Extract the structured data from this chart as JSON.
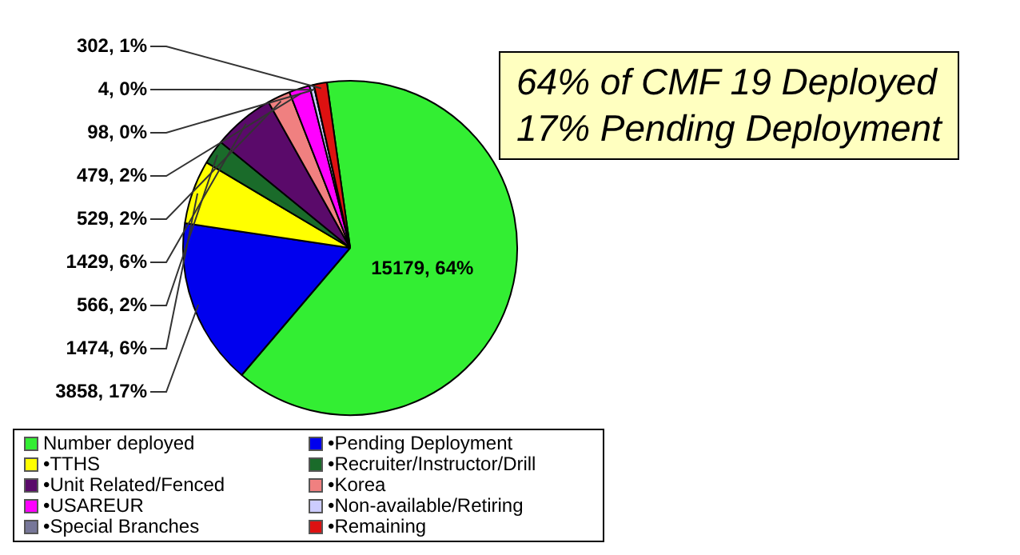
{
  "chart_data": {
    "type": "pie",
    "categories": [
      "Number deployed",
      "•Pending Deployment",
      "•TTHS",
      "•Recruiter/Instructor/Drill",
      "•Unit Related/Fenced",
      "•Korea",
      "•USAREUR",
      "•Non-available/Retiring",
      "•Special Branches",
      "•Remaining"
    ],
    "values": [
      15179,
      3858,
      1474,
      566,
      1429,
      529,
      479,
      98,
      4,
      302
    ],
    "value_labels": [
      "15179, 64%",
      "3858, 17%",
      "1474, 6%",
      "566, 2%",
      "1429, 6%",
      "529, 2%",
      "479, 2%",
      "98, 0%",
      "4, 0%",
      "302, 1%"
    ],
    "colors": [
      "#33ee33",
      "#0000ee",
      "#ffff00",
      "#1a6b2a",
      "#5a0a6a",
      "#f08080",
      "#ff00ff",
      "#ccccff",
      "#777799",
      "#dd1111"
    ],
    "annotations": [
      "64% of CMF 19 Deployed",
      "17% Pending Deployment"
    ],
    "legend": "bottom"
  }
}
